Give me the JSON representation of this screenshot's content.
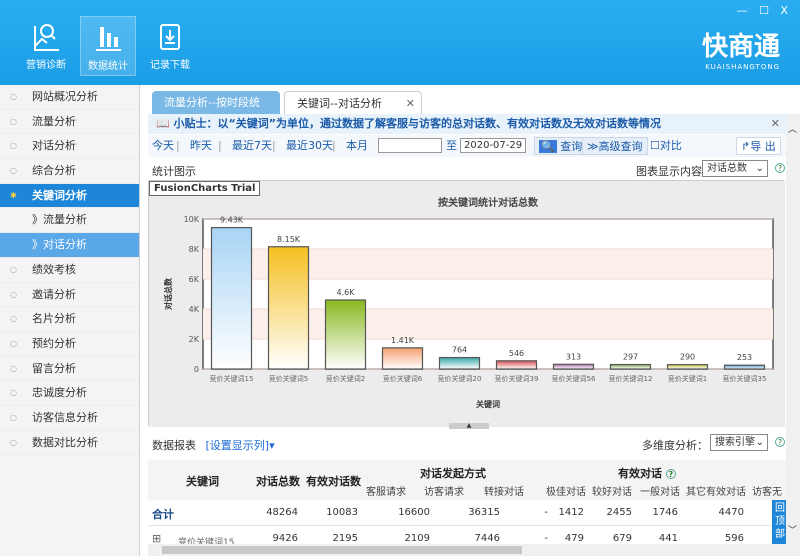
{
  "header": {
    "tools": [
      {
        "label": "营销诊断",
        "icon": "diagnosis-icon"
      },
      {
        "label": "数据统计",
        "icon": "bar-stats-icon"
      },
      {
        "label": "记录下载",
        "icon": "download-icon"
      }
    ],
    "logo": "快商通",
    "logo_sub": "KUAISHANGTONG",
    "window_controls": "— ☐ X"
  },
  "sidebar": {
    "items": [
      {
        "label": "网站概况分析"
      },
      {
        "label": "流量分析"
      },
      {
        "label": "对话分析"
      },
      {
        "label": "综合分析"
      },
      {
        "label": "关键词分析",
        "type": "group"
      },
      {
        "label": "》流量分析",
        "type": "sub"
      },
      {
        "label": "》对话分析",
        "type": "sub",
        "active": true
      },
      {
        "label": "绩效考核"
      },
      {
        "label": "邀请分析"
      },
      {
        "label": "名片分析"
      },
      {
        "label": "预约分析"
      },
      {
        "label": "留言分析"
      },
      {
        "label": "忠诚度分析"
      },
      {
        "label": "访客信息分析"
      },
      {
        "label": "数据对比分析"
      }
    ]
  },
  "tabs": [
    {
      "label": "流量分析--按时段统计"
    },
    {
      "label": "关键词--对话分析",
      "active": true,
      "close": "✕"
    }
  ],
  "tip": {
    "text": "小贴士：以“关键词”为单位，通过数据了解客服与访客的总对话数、有效对话数及无效对话数等情况",
    "close": "✕"
  },
  "filter": {
    "today": "今天",
    "yesterday": "昨天",
    "last7": "最近7天",
    "last30": "最近30天",
    "month": "本月",
    "start_date": "",
    "to": "至",
    "end_date": "2020-07-29",
    "query": "查询",
    "advanced": "高级查询",
    "compare": "对比",
    "export": "导 出"
  },
  "chart_section": {
    "title": "统计图示",
    "display_label": "图表显示内容",
    "display_value": "对话总数",
    "trial": "FusionCharts Trial"
  },
  "chart_data": {
    "type": "bar",
    "title": "按关键词统计对话总数",
    "xlabel": "关键词",
    "ylabel": "对话总数",
    "ylim": [
      0,
      10000
    ],
    "yticks": [
      "0",
      "2K",
      "4K",
      "6K",
      "8K",
      "10K"
    ],
    "categories": [
      "竞价关键词15",
      "竞价关键词5",
      "竞价关键词2",
      "竞价关键词6",
      "竞价关键词20",
      "竞价关键词39",
      "竞价关键词56",
      "竞价关键词12",
      "竞价关键词1",
      "竞价关键词35"
    ],
    "values": [
      9426,
      8150,
      4600,
      1410,
      764,
      546,
      313,
      297,
      290,
      253
    ],
    "labels": [
      "9.43K",
      "8.15K",
      "4.6K",
      "1.41K",
      "764",
      "546",
      "313",
      "297",
      "290",
      "253"
    ],
    "colors": [
      "#a8d4f5",
      "#f5c020",
      "#8ab820",
      "#f5a070",
      "#3aa8a8",
      "#d85050",
      "#b070b0",
      "#80a860",
      "#c8c040",
      "#5098d0"
    ]
  },
  "report": {
    "title": "数据报表",
    "set_columns": "[设置显示列]▾",
    "multi_label": "多维度分析：",
    "multi_value": "搜索引擎",
    "headers": {
      "keyword": "关键词",
      "total": "对话总数",
      "valid": "有效对话数",
      "method": "对话发起方式",
      "valid_group": "有效对话",
      "service_req": "客服请求",
      "visitor_req": "访客请求",
      "transfer": "转接对话",
      "best": "极佳对话",
      "good": "较好对话",
      "normal": "一般对话",
      "other": "其它有效对话",
      "visitor_none": "访客无"
    },
    "rows": [
      {
        "keyword": "合计",
        "total": "48264",
        "valid": "10083",
        "service_req": "16600",
        "visitor_req": "36315",
        "transfer": "-",
        "best": "1412",
        "good": "2455",
        "normal": "1746",
        "other": "4470"
      },
      {
        "expand": "⊞",
        "keyword": "竞价关键词15",
        "total": "9426",
        "valid": "2195",
        "service_req": "2109",
        "visitor_req": "7446",
        "transfer": "-",
        "best": "479",
        "good": "679",
        "normal": "441",
        "other": "596"
      }
    ],
    "back_top": "回顶部"
  }
}
